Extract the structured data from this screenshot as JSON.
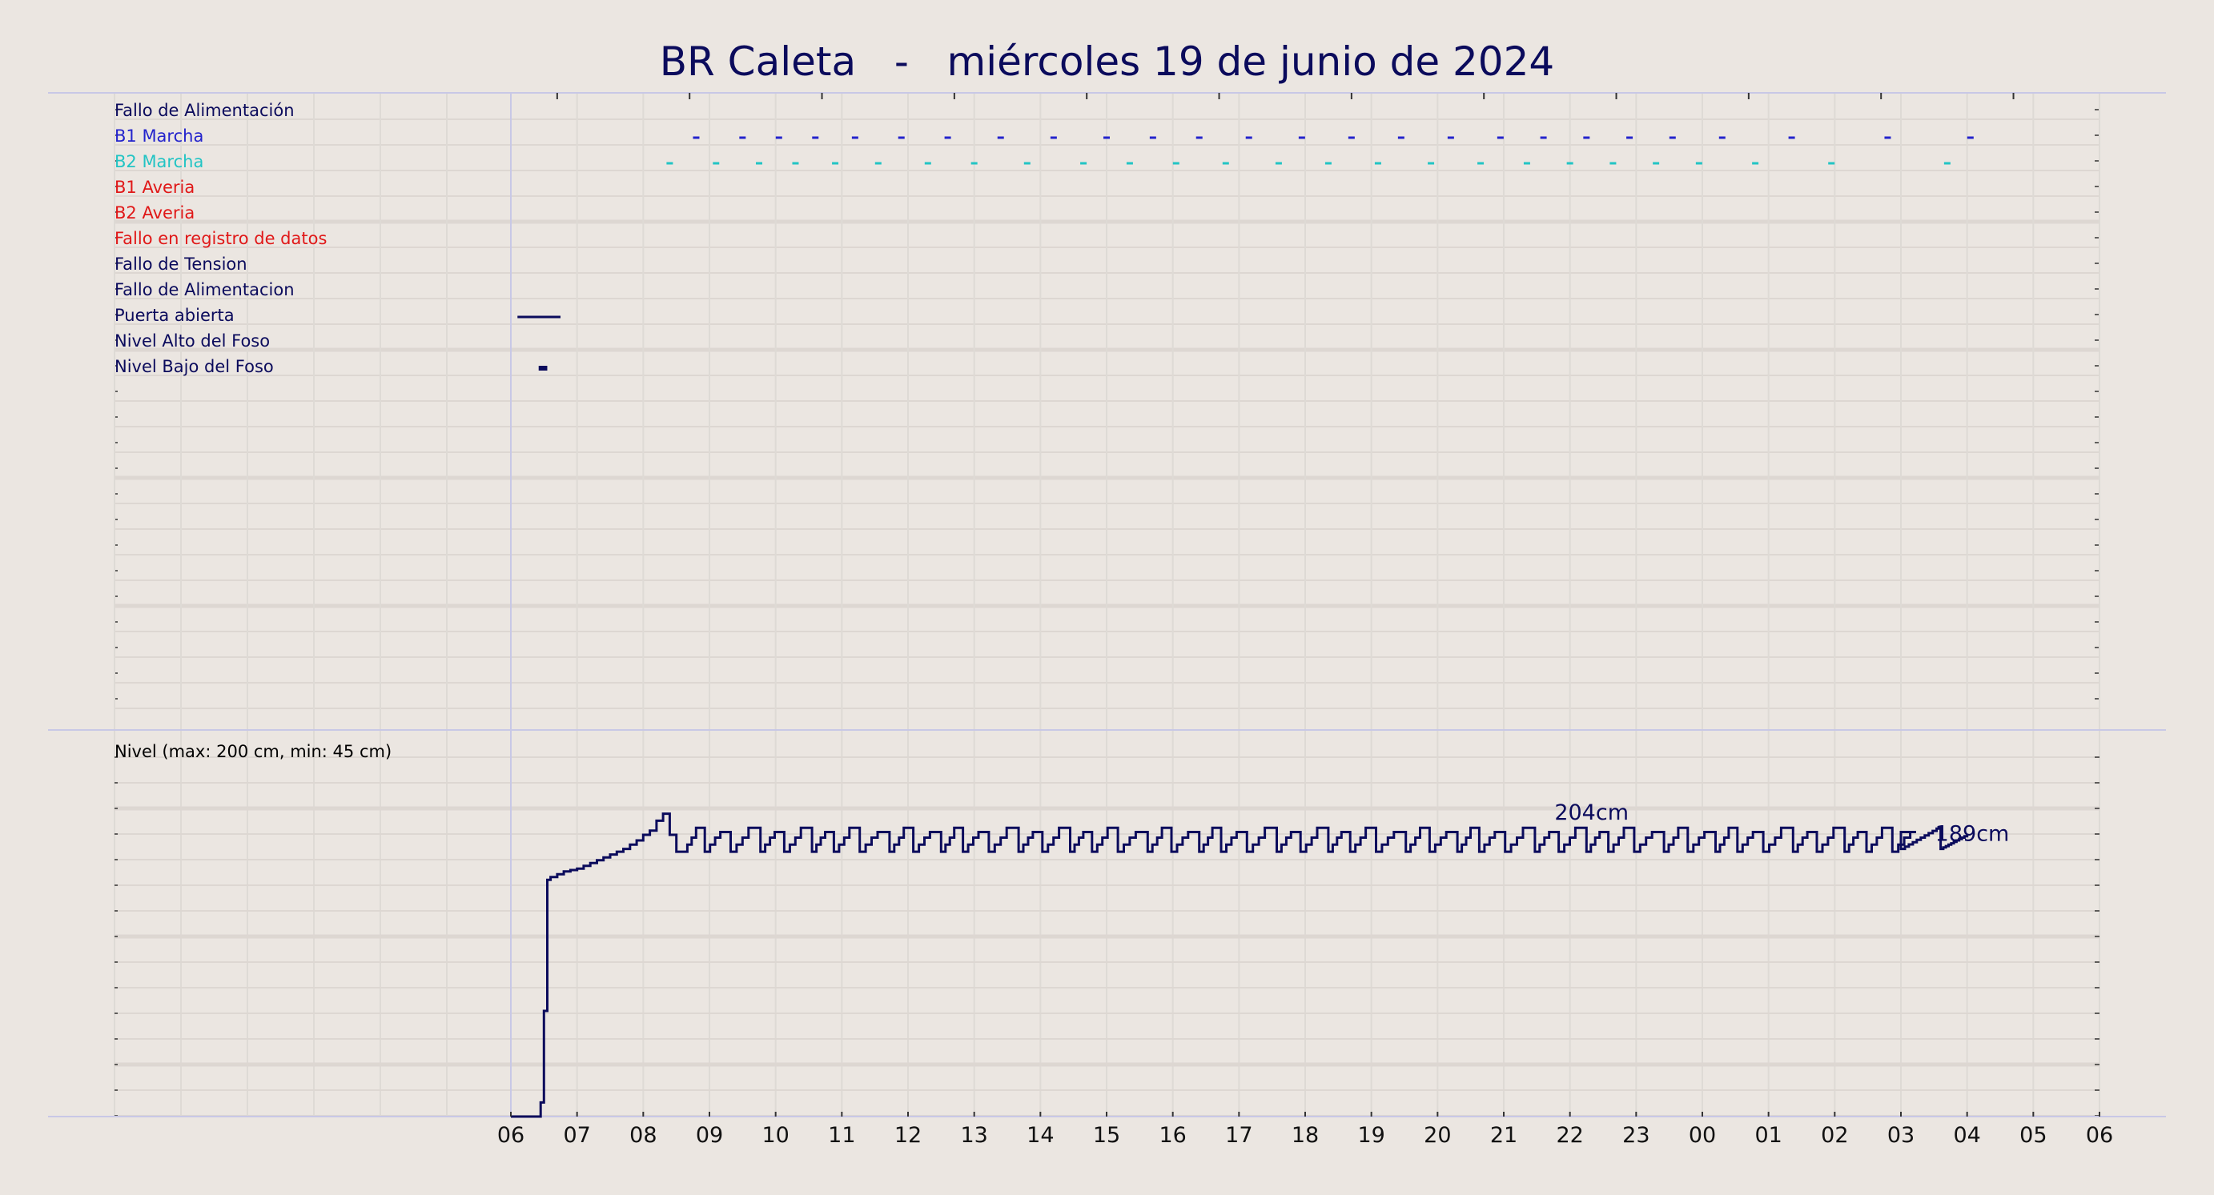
{
  "title": "BR Caleta   -   miércoles 19 de junio de 2024",
  "chart_data": [
    {
      "type": "event-timeline",
      "title": "BR Caleta   -   miércoles 19 de junio de 2024",
      "x_ticks": [
        "06",
        "07",
        "08",
        "09",
        "10",
        "11",
        "12",
        "13",
        "14",
        "15",
        "16",
        "17",
        "18",
        "19",
        "20",
        "21",
        "22",
        "23",
        "00",
        "01",
        "02",
        "03",
        "04",
        "05",
        "06"
      ],
      "grid": true,
      "signals": [
        {
          "name": "Fallo de Alimentación",
          "color": "#0b0b5c",
          "events": []
        },
        {
          "name": "B1 Marcha",
          "color": "#2323cc",
          "events": [
            8.8,
            9.5,
            10.05,
            10.6,
            11.2,
            11.9,
            12.6,
            13.4,
            14.2,
            15.0,
            15.7,
            16.4,
            17.15,
            17.95,
            18.7,
            19.45,
            20.2,
            20.95,
            21.6,
            22.25,
            22.9,
            23.55,
            24.3,
            25.35,
            26.8,
            28.05
          ]
        },
        {
          "name": "B2 Marcha",
          "color": "#22c4c4",
          "events": [
            8.4,
            9.1,
            9.75,
            10.3,
            10.9,
            11.55,
            12.3,
            13.0,
            13.8,
            14.65,
            15.35,
            16.05,
            16.8,
            17.6,
            18.35,
            19.1,
            19.9,
            20.65,
            21.35,
            22.0,
            22.65,
            23.3,
            23.95,
            24.8,
            25.95,
            27.7
          ]
        },
        {
          "name": "B1 Averia",
          "color": "#e01818",
          "events": []
        },
        {
          "name": "B2 Averia",
          "color": "#e01818",
          "events": []
        },
        {
          "name": "Fallo en registro de datos",
          "color": "#e01818",
          "events": []
        },
        {
          "name": "Fallo de Tension",
          "color": "#0b0b5c",
          "events": []
        },
        {
          "name": "Fallo de Alimentacion",
          "color": "#0b0b5c",
          "events": []
        },
        {
          "name": "Puerta abierta",
          "color": "#0b0b5c",
          "events": [],
          "intervals": [
            [
              6.1,
              6.75
            ]
          ]
        },
        {
          "name": "Nivel Alto del Foso",
          "color": "#0b0b5c",
          "events": []
        },
        {
          "name": "Nivel Bajo del Foso",
          "color": "#0b0b5c",
          "events": [],
          "intervals": [
            [
              6.42,
              6.55
            ]
          ]
        }
      ]
    },
    {
      "type": "line",
      "title": "Nivel (max: 200 cm, min: 45 cm)",
      "x_ticks": [
        "06",
        "07",
        "08",
        "09",
        "10",
        "11",
        "12",
        "13",
        "14",
        "15",
        "16",
        "17",
        "18",
        "19",
        "20",
        "21",
        "22",
        "23",
        "00",
        "01",
        "02",
        "03",
        "04",
        "05",
        "06"
      ],
      "ylim": [
        0,
        250
      ],
      "grid": true,
      "series": [
        {
          "color": "#0b0b5c",
          "x": [
            6.0,
            6.45,
            6.5,
            6.55,
            6.6,
            6.7,
            6.8,
            6.9,
            7.0,
            7.1,
            7.2,
            7.3,
            7.4,
            7.5,
            7.6,
            7.7,
            7.8,
            7.9,
            8.0,
            8.1,
            8.2,
            8.3,
            8.4,
            8.5,
            8.6
          ],
          "y": [
            0,
            10,
            75,
            168,
            170,
            172,
            174,
            175,
            176,
            178,
            180,
            182,
            184,
            186,
            188,
            190,
            193,
            196,
            200,
            203,
            210,
            215,
            200,
            188,
            188
          ],
          "oscillation": {
            "from": 8.6,
            "to": 27.0,
            "low": 188,
            "high": 205
          }
        }
      ],
      "annotations": [
        {
          "text": "204cm",
          "x": 22.25,
          "y": 204
        },
        {
          "text": "189cm",
          "x": 28.0,
          "y": 189
        }
      ]
    }
  ]
}
